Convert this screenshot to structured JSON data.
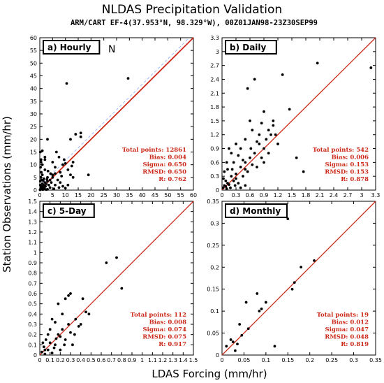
{
  "figure": {
    "title": "NLDAS Precipitation Validation",
    "subtitle": "ARM/CART EF-4(37.953°N, 98.329°W), 00Z01JAN98-23Z30SEP99",
    "xlabel": "LDAS Forcing (mm/hr)",
    "ylabel": "Station Observations (mm/hr)"
  },
  "colors": {
    "one_to_one_line": "#cc2a1a",
    "stats_text": "#cc2a1a",
    "points": "#000000",
    "dashed_line": "#88aaff"
  },
  "chart_data": [
    {
      "type": "scatter",
      "panel_label": "a) Hourly",
      "extra_mark": "N",
      "xlim": [
        0,
        60
      ],
      "ylim": [
        0,
        60
      ],
      "xticks": [
        0,
        5,
        10,
        15,
        20,
        25,
        30,
        35,
        40,
        45,
        50,
        55,
        60
      ],
      "yticks": [
        0,
        5,
        10,
        15,
        20,
        25,
        30,
        35,
        40,
        45,
        50,
        55,
        60
      ],
      "tick_labels": [
        "0",
        "5",
        "10",
        "15",
        "20",
        "25",
        "30",
        "35",
        "40",
        "45",
        "50",
        "55",
        "60"
      ],
      "stats": [
        "Total points: 12861",
        "Bias: 0.004",
        "Sigma: 0.650",
        "RMSD: 0.650",
        "R: 0.762"
      ],
      "points": [
        [
          0.3,
          0.5
        ],
        [
          0.5,
          1.2
        ],
        [
          0.8,
          0.3
        ],
        [
          1,
          2.5
        ],
        [
          1.2,
          1
        ],
        [
          1.5,
          0.5
        ],
        [
          2,
          3
        ],
        [
          2.2,
          1.5
        ],
        [
          0.2,
          3.5
        ],
        [
          0.4,
          5
        ],
        [
          0.6,
          7
        ],
        [
          1,
          6
        ],
        [
          0.3,
          9
        ],
        [
          0.5,
          12
        ],
        [
          0.2,
          15
        ],
        [
          1,
          10
        ],
        [
          2,
          8
        ],
        [
          3,
          5
        ],
        [
          3.5,
          2
        ],
        [
          4,
          1
        ],
        [
          4.5,
          3
        ],
        [
          5,
          6
        ],
        [
          5.5,
          0.5
        ],
        [
          6,
          2
        ],
        [
          7,
          4
        ],
        [
          7.5,
          1
        ],
        [
          8,
          3
        ],
        [
          9,
          1.5
        ],
        [
          10,
          0.8
        ],
        [
          11,
          2
        ],
        [
          12,
          6
        ],
        [
          13,
          5
        ],
        [
          2.5,
          0.2
        ],
        [
          3,
          0.3
        ],
        [
          0.1,
          0.1
        ],
        [
          1.8,
          0.8
        ],
        [
          0.7,
          4
        ],
        [
          1.3,
          3.8
        ],
        [
          2.8,
          4.2
        ],
        [
          3.2,
          7.5
        ],
        [
          4.2,
          6.5
        ],
        [
          2,
          12
        ],
        [
          5,
          11
        ],
        [
          6,
          9
        ],
        [
          8,
          7
        ],
        [
          9,
          10
        ],
        [
          10,
          10.5
        ],
        [
          11,
          8
        ],
        [
          2,
          13
        ],
        [
          3,
          20
        ],
        [
          1,
          15.5
        ],
        [
          0.5,
          11
        ],
        [
          12,
          20
        ],
        [
          10.5,
          42
        ],
        [
          14,
          22
        ],
        [
          16,
          22.5
        ],
        [
          16,
          21
        ],
        [
          19,
          6
        ],
        [
          34.5,
          44
        ],
        [
          6.5,
          15
        ],
        [
          7.5,
          13
        ],
        [
          9.5,
          12
        ],
        [
          1.5,
          2
        ],
        [
          2.5,
          2.5
        ],
        [
          3,
          3.5
        ],
        [
          4,
          4
        ],
        [
          5,
          5
        ],
        [
          6,
          6.5
        ],
        [
          1.2,
          0.2
        ],
        [
          0.9,
          1.4
        ],
        [
          0.2,
          2
        ],
        [
          1.6,
          4.5
        ],
        [
          8.5,
          5.5
        ],
        [
          12.5,
          9.5
        ],
        [
          13,
          11
        ]
      ]
    },
    {
      "type": "scatter",
      "panel_label": "b) Daily",
      "xlim": [
        0,
        3.3
      ],
      "ylim": [
        0,
        3.3
      ],
      "xticks": [
        0,
        0.3,
        0.6,
        0.9,
        1.2,
        1.5,
        1.8,
        2.1,
        2.4,
        2.7,
        3,
        3.3
      ],
      "yticks": [
        0,
        0.3,
        0.6,
        0.9,
        1.2,
        1.5,
        1.8,
        2.1,
        2.4,
        2.7,
        3,
        3.3
      ],
      "tick_labels": [
        "0",
        "0.3",
        "0.6",
        "0.9",
        "1.2",
        "1.5",
        "1.8",
        "2.1",
        "2.4",
        "2.7",
        "3",
        "3.3"
      ],
      "stats": [
        "Total points: 542",
        "Bias: 0.006",
        "Sigma: 0.153",
        "RMSD: 0.153",
        "R: 0.878"
      ],
      "points": [
        [
          0.02,
          0.05
        ],
        [
          0.05,
          0.1
        ],
        [
          0.1,
          0.03
        ],
        [
          0.08,
          0.2
        ],
        [
          0.15,
          0.12
        ],
        [
          0.2,
          0.3
        ],
        [
          0.12,
          0.45
        ],
        [
          0.25,
          0.2
        ],
        [
          0.3,
          0.35
        ],
        [
          0.35,
          0.15
        ],
        [
          0.4,
          0.5
        ],
        [
          0.45,
          0.3
        ],
        [
          0.5,
          0.6
        ],
        [
          0.55,
          0.4
        ],
        [
          0.6,
          0.7
        ],
        [
          0.65,
          0.55
        ],
        [
          0.7,
          0.8
        ],
        [
          0.75,
          0.5
        ],
        [
          0.8,
          1
        ],
        [
          0.85,
          0.7
        ],
        [
          0.9,
          0.9
        ],
        [
          0.95,
          1.1
        ],
        [
          1,
          0.8
        ],
        [
          1.05,
          1.2
        ],
        [
          1.1,
          1.4
        ],
        [
          0.2,
          0.8
        ],
        [
          0.15,
          0.9
        ],
        [
          0.1,
          0.6
        ],
        [
          0.3,
          1
        ],
        [
          0.5,
          1.1
        ],
        [
          0.6,
          1.5
        ],
        [
          0.55,
          2.2
        ],
        [
          0.7,
          2.4
        ],
        [
          1.3,
          2.5
        ],
        [
          1.45,
          1.75
        ],
        [
          1.2,
          1
        ],
        [
          0.9,
          1.7
        ],
        [
          1.1,
          1.5
        ],
        [
          2.05,
          2.75
        ],
        [
          3.2,
          2.65
        ],
        [
          1.6,
          0.7
        ],
        [
          1.75,
          0.4
        ],
        [
          0.4,
          0.05
        ],
        [
          0.5,
          0.1
        ],
        [
          0.25,
          0.6
        ],
        [
          0.35,
          0.75
        ],
        [
          0.05,
          0.4
        ],
        [
          0.03,
          0.25
        ],
        [
          0.08,
          0.08
        ],
        [
          0.18,
          0.05
        ],
        [
          0.28,
          0.1
        ],
        [
          0.22,
          0.45
        ],
        [
          0.4,
          0.9
        ],
        [
          0.65,
          1.3
        ],
        [
          0.8,
          1.2
        ],
        [
          1.0,
          1.3
        ],
        [
          0.75,
          1.05
        ],
        [
          0.9,
          0.6
        ],
        [
          0.45,
          0.65
        ],
        [
          0.12,
          0.15
        ],
        [
          0.3,
          0.25
        ],
        [
          0.5,
          0.45
        ],
        [
          0.62,
          0.9
        ],
        [
          0.85,
          1.45
        ],
        [
          1.15,
          1.2
        ]
      ]
    },
    {
      "type": "scatter",
      "panel_label": "c) 5-Day",
      "xlim": [
        0,
        1.5
      ],
      "ylim": [
        0,
        1.5
      ],
      "xticks": [
        0,
        0.1,
        0.2,
        0.3,
        0.4,
        0.5,
        0.6,
        0.7,
        0.8,
        0.9,
        1,
        1.1,
        1.2,
        1.3,
        1.4,
        1.5
      ],
      "yticks": [
        0,
        0.1,
        0.2,
        0.3,
        0.4,
        0.5,
        0.6,
        0.7,
        0.8,
        0.9,
        1,
        1.1,
        1.2,
        1.3,
        1.4,
        1.5
      ],
      "tick_labels": [
        "0",
        "0.1",
        "0.2",
        "0.3",
        "0.4",
        "0.5",
        "0.6",
        "0.7",
        "0.8",
        "0.9",
        "1",
        "1.1",
        "1.2",
        "1.3",
        "1.4",
        "1.5"
      ],
      "stats": [
        "Total points: 112",
        "Bias: 0.008",
        "Sigma: 0.074",
        "RMSD: 0.075",
        "R: 0.917"
      ],
      "points": [
        [
          0.02,
          0.03
        ],
        [
          0.05,
          0.01
        ],
        [
          0.04,
          0.08
        ],
        [
          0.08,
          0.05
        ],
        [
          0.1,
          0.12
        ],
        [
          0.12,
          0.02
        ],
        [
          0.06,
          0.15
        ],
        [
          0.15,
          0.1
        ],
        [
          0.18,
          0.2
        ],
        [
          0.2,
          0.05
        ],
        [
          0.22,
          0.25
        ],
        [
          0.25,
          0.15
        ],
        [
          0.28,
          0.3
        ],
        [
          0.3,
          0.22
        ],
        [
          0.32,
          0.1
        ],
        [
          0.35,
          0.35
        ],
        [
          0.4,
          0.3
        ],
        [
          0.45,
          0.42
        ],
        [
          0.42,
          0.55
        ],
        [
          0.3,
          0.6
        ],
        [
          0.28,
          0.58
        ],
        [
          0.25,
          0.55
        ],
        [
          0.18,
          0.5
        ],
        [
          0.12,
          0.35
        ],
        [
          0.65,
          0.9
        ],
        [
          0.75,
          0.95
        ],
        [
          0.8,
          0.65
        ],
        [
          0.15,
          0.32
        ],
        [
          0.2,
          0.18
        ],
        [
          0.1,
          0.25
        ],
        [
          0.08,
          0.2
        ],
        [
          0.03,
          0.12
        ],
        [
          0.14,
          0.07
        ],
        [
          0.24,
          0.1
        ],
        [
          0.34,
          0.2
        ],
        [
          0.38,
          0.28
        ],
        [
          0.48,
          0.4
        ],
        [
          0.22,
          0.4
        ],
        [
          0.16,
          0.16
        ],
        [
          0.05,
          0.05
        ]
      ]
    },
    {
      "type": "scatter",
      "panel_label": "d) Monthly",
      "xlim": [
        0,
        0.35
      ],
      "ylim": [
        0,
        0.35
      ],
      "xticks": [
        0,
        0.05,
        0.1,
        0.15,
        0.2,
        0.25,
        0.3,
        0.35
      ],
      "yticks": [
        0,
        0.05,
        0.1,
        0.15,
        0.2,
        0.25,
        0.3,
        0.35
      ],
      "tick_labels": [
        "0",
        "0.05",
        "0.1",
        "0.15",
        "0.2",
        "0.25",
        "0.3",
        "0.35"
      ],
      "stats": [
        "Total points: 19",
        "Bias: 0.012",
        "Sigma: 0.047",
        "RMSD: 0.048",
        "R: 0.819"
      ],
      "points": [
        [
          0.01,
          0.02
        ],
        [
          0.02,
          0.035
        ],
        [
          0.03,
          0.01
        ],
        [
          0.04,
          0.07
        ],
        [
          0.045,
          0.045
        ],
        [
          0.055,
          0.12
        ],
        [
          0.06,
          0.06
        ],
        [
          0.08,
          0.14
        ],
        [
          0.085,
          0.1
        ],
        [
          0.09,
          0.105
        ],
        [
          0.1,
          0.12
        ],
        [
          0.12,
          0.02
        ],
        [
          0.15,
          0.31
        ],
        [
          0.16,
          0.15
        ],
        [
          0.165,
          0.165
        ],
        [
          0.18,
          0.2
        ],
        [
          0.21,
          0.215
        ],
        [
          0.025,
          0.03
        ],
        [
          0.035,
          0.025
        ]
      ]
    }
  ]
}
